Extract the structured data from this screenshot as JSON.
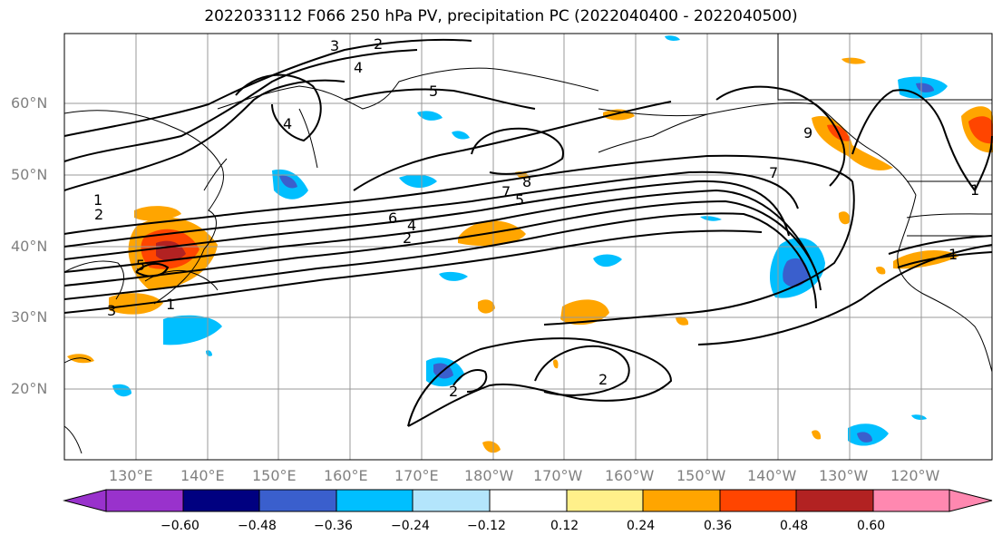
{
  "title": "2022033112 F066 250 hPa PV, precipitation PC (2022040400 - 2022040500)",
  "lat_labels": [
    "60°N",
    "50°N",
    "40°N",
    "30°N",
    "20°N"
  ],
  "lon_labels": [
    "130°E",
    "140°E",
    "150°E",
    "160°E",
    "170°E",
    "180°W",
    "170°W",
    "160°W",
    "150°W",
    "140°W",
    "130°W",
    "120°W"
  ],
  "contour_labels": [
    "3",
    "2",
    "4",
    "5",
    "1",
    "2",
    "6",
    "4",
    "2",
    "7",
    "5",
    "8",
    "7",
    "5",
    "1",
    "3",
    "1",
    "2",
    "2",
    "4",
    "9",
    "1"
  ],
  "colorbar": {
    "ticks": [
      "−0.60",
      "−0.48",
      "−0.36",
      "−0.24",
      "−0.12",
      "0.12",
      "0.24",
      "0.36",
      "0.48",
      "0.60"
    ],
    "colors": [
      "#9932cc",
      "#000080",
      "#3a5fcd",
      "#00bfff",
      "#b3e5fc",
      "#ffffff",
      "#fff08a",
      "#ffa500",
      "#ff4500",
      "#b22222",
      "#ff88b0"
    ]
  }
}
